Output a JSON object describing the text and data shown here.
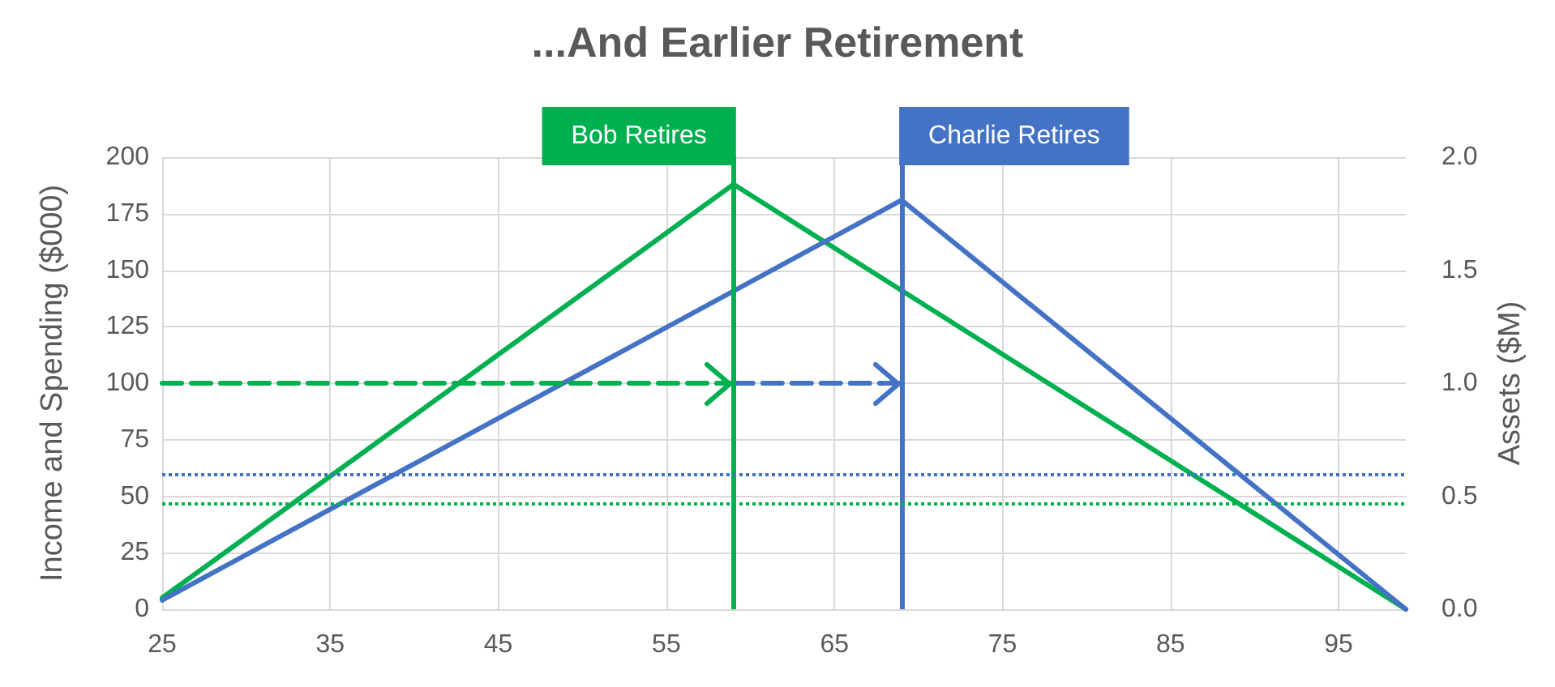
{
  "chart_data": {
    "type": "line",
    "title": "...And Earlier Retirement",
    "ylabel": "Income and Spending ($000)",
    "y2label": "Assets ($M)",
    "xlim": [
      25,
      99
    ],
    "xticks": [
      25,
      35,
      45,
      55,
      65,
      75,
      85,
      95
    ],
    "ylim": [
      0,
      200
    ],
    "yticks": [
      0,
      25,
      50,
      75,
      100,
      125,
      150,
      175,
      200
    ],
    "y2lim": [
      0,
      2
    ],
    "y2ticks": [
      {
        "value": 0,
        "label": "0.0"
      },
      0.5,
      {
        "value": 1,
        "label": "1.0"
      },
      1.5,
      {
        "value": 2,
        "label": "2.0"
      }
    ],
    "grid": true,
    "series": [
      {
        "color": "#00b050",
        "axis": "y2",
        "x": [
          25,
          59,
          99
        ],
        "values": [
          0.05,
          1.88,
          0
        ]
      },
      {
        "color": "#4472c4",
        "axis": "y2",
        "x": [
          25,
          69,
          99
        ],
        "values": [
          0.04,
          1.81,
          0
        ]
      },
      {
        "color": "#00b050",
        "line_style": "dashed",
        "x": [
          25,
          59
        ],
        "values": [
          100,
          100
        ]
      },
      {
        "color": "#4472c4",
        "line_style": "dashed",
        "x": [
          59,
          69
        ],
        "values": [
          100,
          100
        ]
      }
    ],
    "ref_lines": [
      {
        "axis": "x",
        "value": 59,
        "label": "Bob Retires",
        "color": "#00b050"
      },
      {
        "axis": "x",
        "value": 69,
        "label": "Charlie Retires",
        "color": "#4472c4"
      },
      {
        "axis": "y",
        "value": 60,
        "color": "#4472c4",
        "line_style": "dotted"
      },
      {
        "axis": "y",
        "value": 47,
        "color": "#00b050",
        "line_style": "dotted"
      }
    ]
  }
}
